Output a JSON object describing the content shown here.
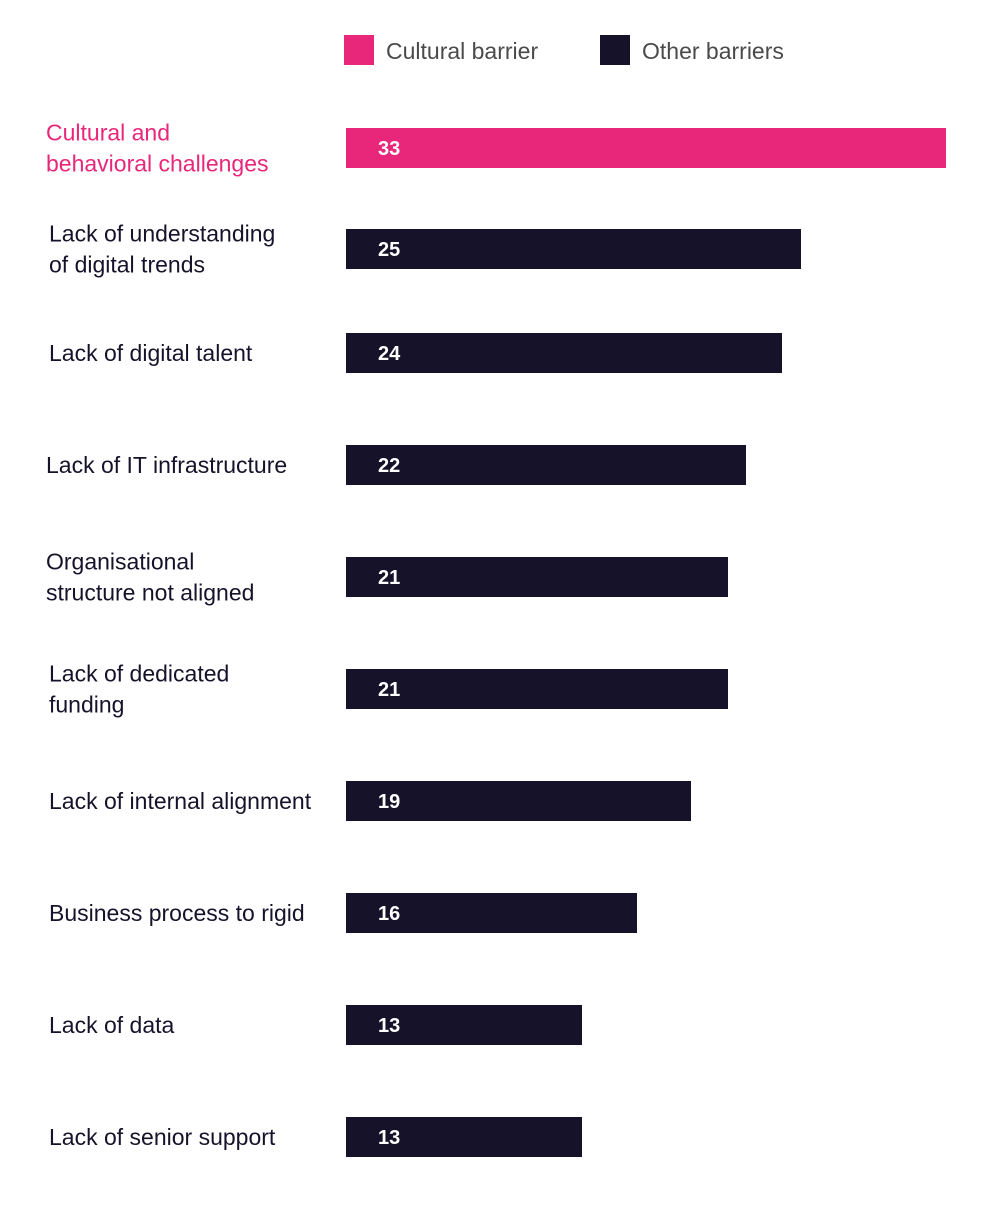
{
  "chart_data": {
    "type": "bar",
    "orientation": "horizontal",
    "title": "",
    "xlabel": "",
    "ylabel": "",
    "legend_placement": "top",
    "grid": false,
    "xlim": [
      0,
      33
    ],
    "legend": [
      {
        "name": "Cultural barrier",
        "color": "#e8277a"
      },
      {
        "name": "Other barriers",
        "color": "#16122a"
      }
    ],
    "categories": [
      [
        "Cultural and",
        "behavioral challenges"
      ],
      [
        "Lack of understanding",
        "of digital trends"
      ],
      [
        "Lack of digital talent"
      ],
      [
        "Lack of IT infrastructure"
      ],
      [
        "Organisational",
        "structure not aligned"
      ],
      [
        "Lack of dedicated",
        "funding"
      ],
      [
        "Lack of internal alignment"
      ],
      [
        "Business process to rigid"
      ],
      [
        "Lack of data"
      ],
      [
        "Lack of senior support"
      ]
    ],
    "values": [
      33,
      25,
      24,
      22,
      21,
      21,
      19,
      16,
      13,
      13
    ],
    "labels": [
      "33",
      "25",
      "24",
      "22",
      "21",
      "21",
      "19",
      "16",
      "13",
      "13"
    ],
    "series_index": [
      0,
      1,
      1,
      1,
      1,
      1,
      1,
      1,
      1,
      1
    ]
  }
}
